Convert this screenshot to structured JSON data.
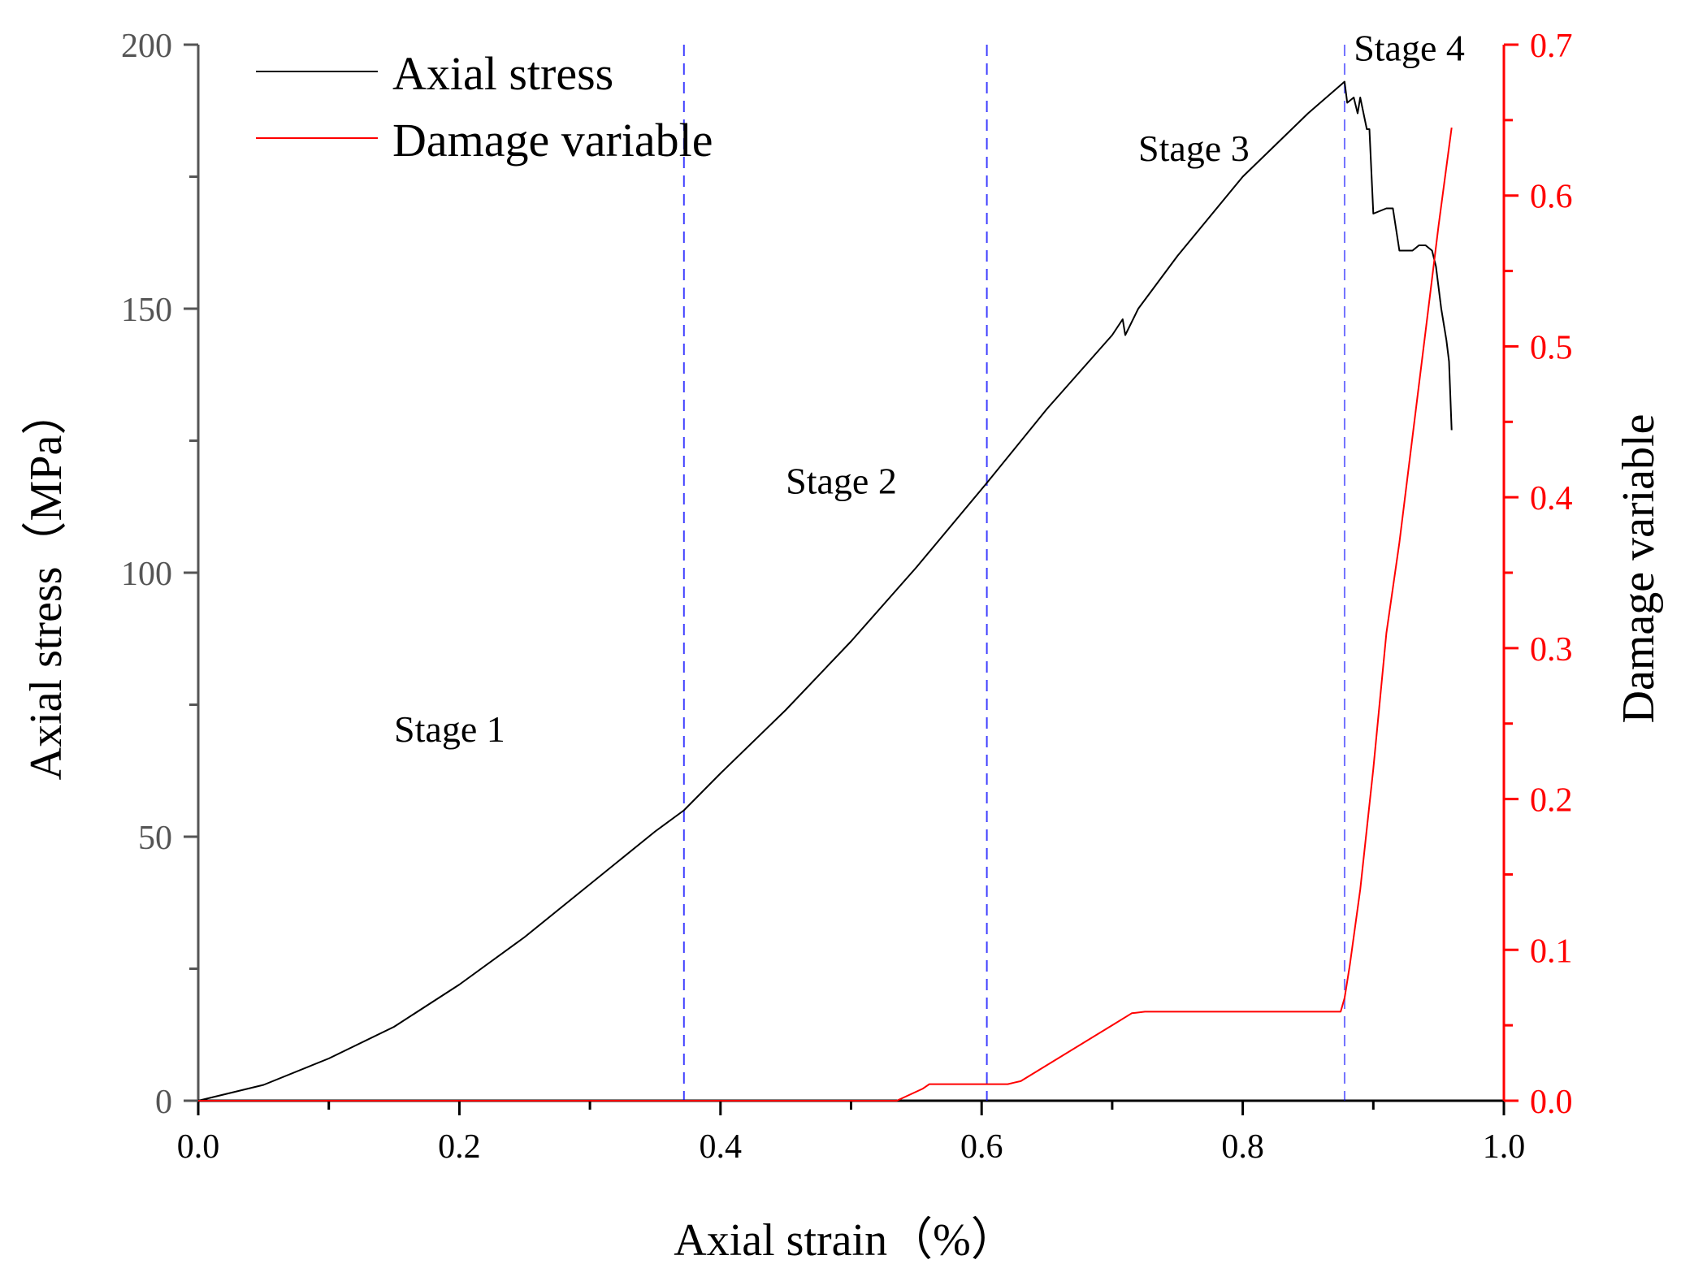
{
  "chart_data": {
    "type": "line",
    "title": "",
    "xlabel": "Axial strain（%）",
    "ylabel": "Axial stress（MPa）",
    "y2label": "Damage variable",
    "xlim": [
      0.0,
      1.0
    ],
    "ylim": [
      0,
      200
    ],
    "y2lim": [
      0.0,
      0.7
    ],
    "x_ticks": [
      "0.0",
      "0.2",
      "0.4",
      "0.6",
      "0.8",
      "1.0"
    ],
    "y_ticks": [
      "0",
      "50",
      "100",
      "150",
      "200"
    ],
    "y2_ticks": [
      "0.0",
      "0.1",
      "0.2",
      "0.3",
      "0.4",
      "0.5",
      "0.6",
      "0.7"
    ],
    "grid": false,
    "legend_position": "top-left",
    "legend": [
      "Axial stress",
      "Damage variable"
    ],
    "colors": {
      "axial_stress": "#000000",
      "damage_variable": "#ff0000",
      "stage_divider": "#0000ff",
      "left_axis": "#555555",
      "right_axis": "#ff0000"
    },
    "series": [
      {
        "name": "Axial stress",
        "axis": "left",
        "x": [
          0.0,
          0.05,
          0.1,
          0.15,
          0.2,
          0.25,
          0.3,
          0.35,
          0.372,
          0.4,
          0.45,
          0.5,
          0.55,
          0.604,
          0.65,
          0.7,
          0.708,
          0.71,
          0.72,
          0.75,
          0.8,
          0.85,
          0.878,
          0.88,
          0.885,
          0.888,
          0.89,
          0.895,
          0.897,
          0.9,
          0.91,
          0.915,
          0.92,
          0.93,
          0.935,
          0.94,
          0.945,
          0.948,
          0.952,
          0.956,
          0.958,
          0.96
        ],
        "values": [
          0,
          3,
          8,
          14,
          22,
          31,
          41,
          51,
          55,
          62,
          74,
          87,
          101,
          117,
          131,
          145,
          148,
          145,
          150,
          160,
          175,
          187,
          193,
          189,
          190,
          187,
          190,
          184,
          184,
          168,
          169,
          169,
          161,
          161,
          162,
          162,
          161,
          158,
          150,
          144,
          140,
          127
        ]
      },
      {
        "name": "Damage variable",
        "axis": "right",
        "x": [
          0.0,
          0.535,
          0.555,
          0.56,
          0.62,
          0.625,
          0.63,
          0.7,
          0.715,
          0.725,
          0.875,
          0.878,
          0.882,
          0.89,
          0.9,
          0.91,
          0.92,
          0.93,
          0.94,
          0.95,
          0.96
        ],
        "values": [
          0.0,
          0.0,
          0.008,
          0.011,
          0.011,
          0.012,
          0.013,
          0.05,
          0.058,
          0.059,
          0.059,
          0.068,
          0.09,
          0.14,
          0.22,
          0.31,
          0.37,
          0.44,
          0.51,
          0.58,
          0.645
        ]
      }
    ],
    "stage_dividers": [
      0.372,
      0.604,
      0.878
    ],
    "annotations": [
      {
        "text": "Stage 1",
        "x": 0.15,
        "y": 68
      },
      {
        "text": "Stage 2",
        "x": 0.45,
        "y": 115
      },
      {
        "text": "Stage 3",
        "x": 0.72,
        "y": 178
      },
      {
        "text": "Stage 4",
        "x": 0.885,
        "y": 197
      }
    ]
  }
}
